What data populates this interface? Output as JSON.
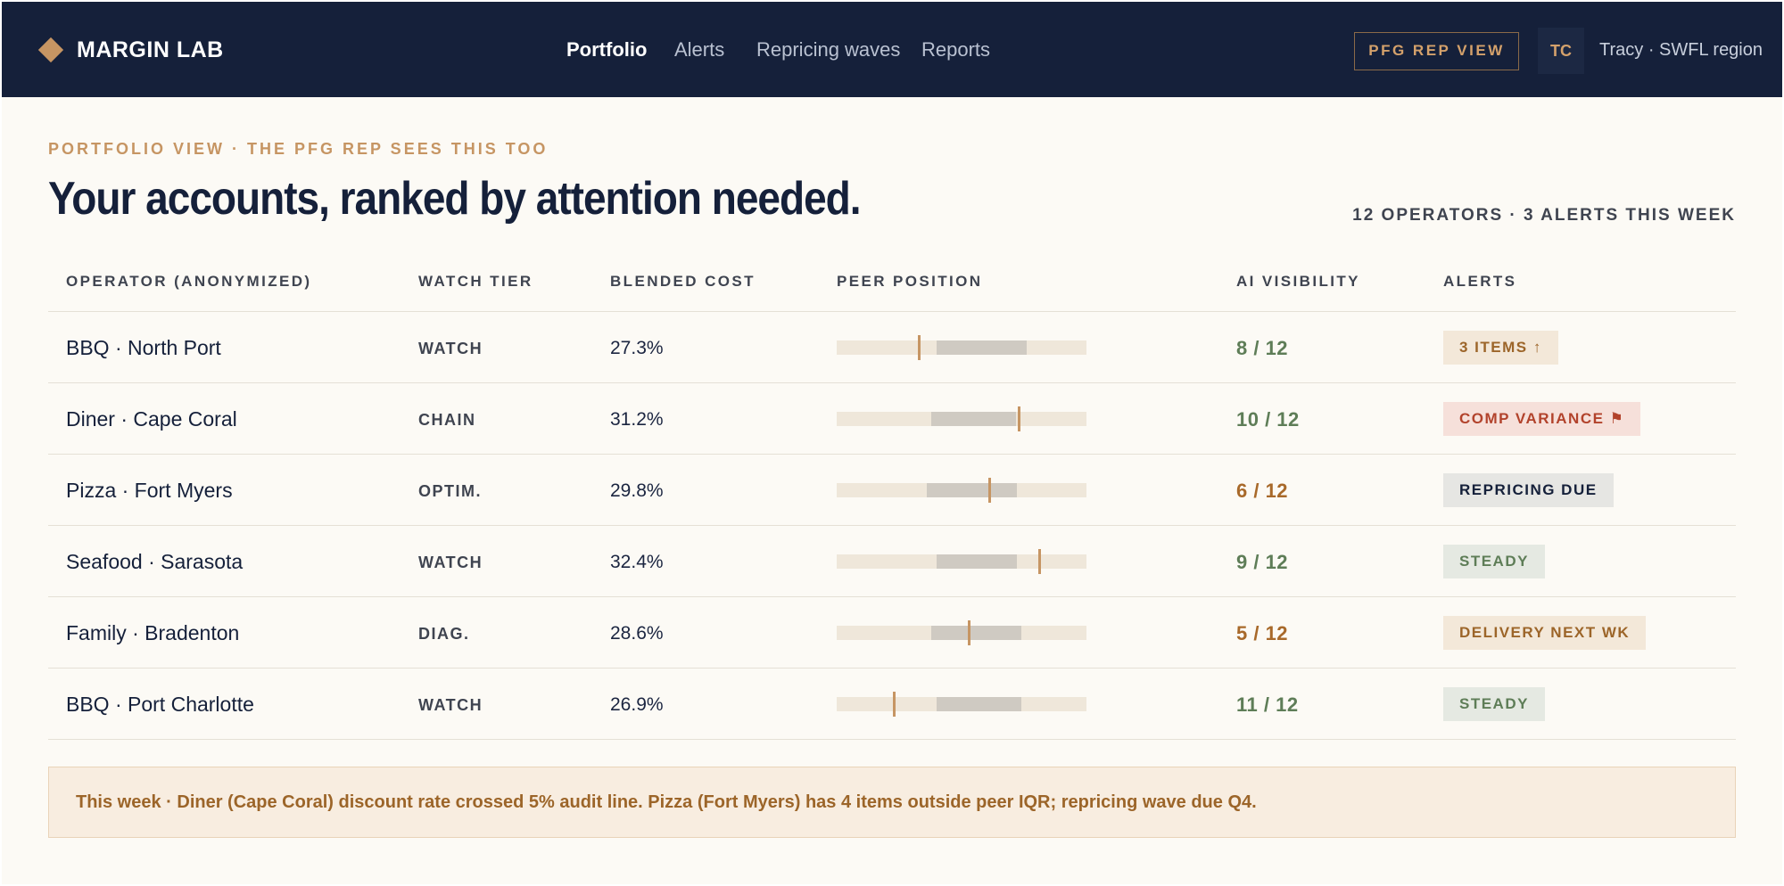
{
  "app": {
    "logo_text": "MARGIN LAB"
  },
  "nav": {
    "items": [
      {
        "label": "Portfolio",
        "active": true
      },
      {
        "label": "Alerts",
        "active": false
      },
      {
        "label": "Repricing waves",
        "active": false
      },
      {
        "label": "Reports",
        "active": false
      }
    ]
  },
  "header_right": {
    "rep_view_label": "PFG REP VIEW",
    "avatar_initials": "TC",
    "user_text": "Tracy · SWFL region"
  },
  "page": {
    "eyebrow": "PORTFOLIO VIEW · THE PFG REP SEES THIS TOO",
    "title": "Your accounts, ranked by attention needed.",
    "summary": "12 OPERATORS · 3 ALERTS THIS WEEK"
  },
  "table": {
    "headers": {
      "operator": "OPERATOR (ANONYMIZED)",
      "tier": "WATCH TIER",
      "cost": "BLENDED COST",
      "peer": "PEER POSITION",
      "visibility": "AI VISIBILITY",
      "alerts": "ALERTS"
    },
    "rows": [
      {
        "operator": "BBQ · North Port",
        "tier": "WATCH",
        "cost": "27.3%",
        "peer": {
          "iqr_start": 0.4,
          "iqr_end": 0.76,
          "marker": 0.33
        },
        "visibility": "8 / 12",
        "visibility_color": "#5e7d57",
        "alert": "3 ITEMS ↑",
        "alert_bg": "#f3e8d9",
        "alert_fg": "#9c6529"
      },
      {
        "operator": "Diner · Cape Coral",
        "tier": "CHAIN",
        "cost": "31.2%",
        "peer": {
          "iqr_start": 0.38,
          "iqr_end": 0.72,
          "marker": 0.73
        },
        "visibility": "10 / 12",
        "visibility_color": "#5e7d57",
        "alert": "COMP VARIANCE ⚑",
        "alert_bg": "#f6e0da",
        "alert_fg": "#b2432c"
      },
      {
        "operator": "Pizza · Fort Myers",
        "tier": "OPTIM.",
        "cost": "29.8%",
        "peer": {
          "iqr_start": 0.36,
          "iqr_end": 0.72,
          "marker": 0.61
        },
        "visibility": "6 / 12",
        "visibility_color": "#a8692a",
        "alert": "REPRICING DUE",
        "alert_bg": "#e6e6e3",
        "alert_fg": "#15203a"
      },
      {
        "operator": "Seafood · Sarasota",
        "tier": "WATCH",
        "cost": "32.4%",
        "peer": {
          "iqr_start": 0.4,
          "iqr_end": 0.72,
          "marker": 0.81
        },
        "visibility": "9 / 12",
        "visibility_color": "#5e7d57",
        "alert": "STEADY",
        "alert_bg": "#e5e9e2",
        "alert_fg": "#5e7d57"
      },
      {
        "operator": "Family · Bradenton",
        "tier": "DIAG.",
        "cost": "28.6%",
        "peer": {
          "iqr_start": 0.38,
          "iqr_end": 0.74,
          "marker": 0.53
        },
        "visibility": "5 / 12",
        "visibility_color": "#a8692a",
        "alert": "DELIVERY NEXT WK",
        "alert_bg": "#f3e8d9",
        "alert_fg": "#9c6529"
      },
      {
        "operator": "BBQ · Port Charlotte",
        "tier": "WATCH",
        "cost": "26.9%",
        "peer": {
          "iqr_start": 0.4,
          "iqr_end": 0.74,
          "marker": 0.23
        },
        "visibility": "11 / 12",
        "visibility_color": "#5e7d57",
        "alert": "STEADY",
        "alert_bg": "#e5e9e2",
        "alert_fg": "#5e7d57"
      }
    ]
  },
  "banner": {
    "text": "This week · Diner (Cape Coral) discount rate crossed 5% audit line. Pizza (Fort Myers) has 4 items outside peer IQR; repricing wave due Q4."
  }
}
